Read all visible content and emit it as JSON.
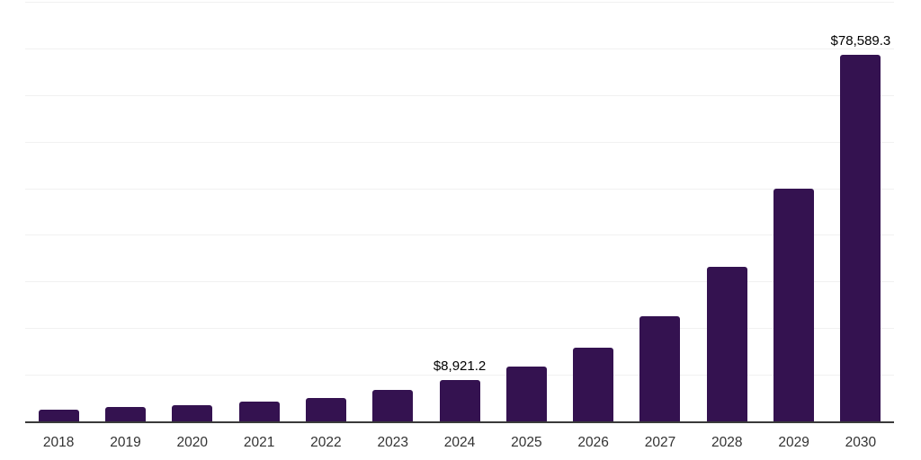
{
  "chart": {
    "background": "#ffffff",
    "bar_color": "#341250",
    "gridline_color": "#f1f1f1",
    "axis_color": "#3a3a3a",
    "label_color": "#000000",
    "tick_color": "#333333"
  },
  "chart_data": {
    "type": "bar",
    "title": "",
    "xlabel": "",
    "ylabel": "",
    "categories": [
      "2018",
      "2019",
      "2020",
      "2021",
      "2022",
      "2023",
      "2024",
      "2025",
      "2026",
      "2027",
      "2028",
      "2029",
      "2030"
    ],
    "values": [
      2500,
      3150,
      3500,
      4200,
      5100,
      6700,
      8921.2,
      11800,
      15900,
      22600,
      33100,
      50000,
      78589.3
    ],
    "value_labels": [
      null,
      null,
      null,
      null,
      null,
      null,
      "$8,921.2",
      null,
      null,
      null,
      null,
      null,
      "$78,589.3"
    ],
    "ylim": [
      0,
      90000
    ],
    "grid_interval": 10000,
    "grid": true,
    "legend": false
  }
}
